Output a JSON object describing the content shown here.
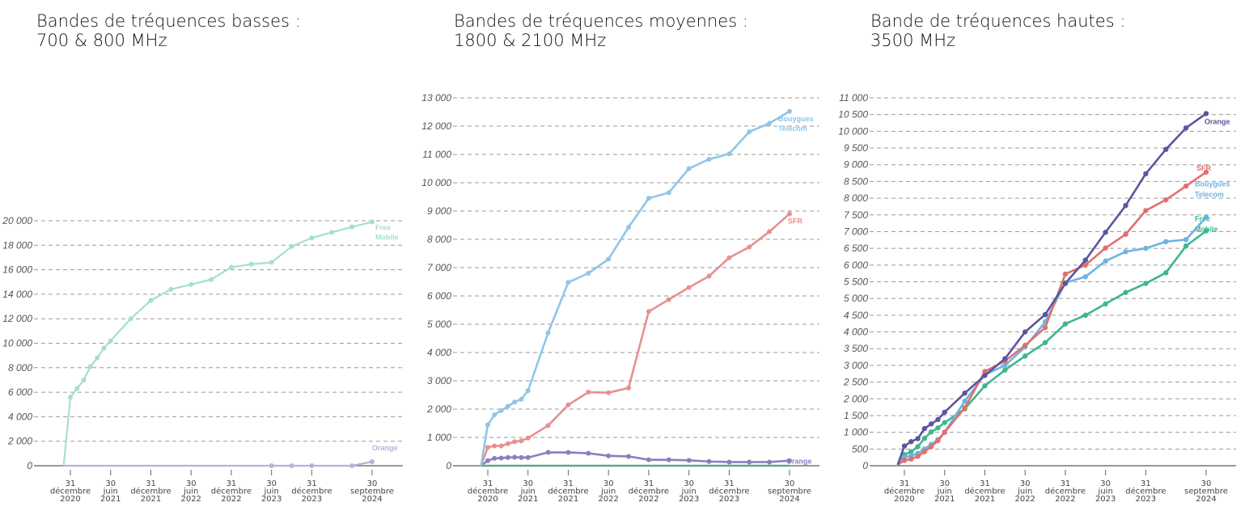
{
  "chart_data": [
    {
      "type": "line",
      "title": [
        "Bandes de tréquences basses :",
        "700 & 800 MHz"
      ],
      "x_unit": "months since 31 décembre 2020",
      "x": [
        -1,
        0,
        1,
        2,
        3,
        4,
        5,
        6,
        9,
        12,
        15,
        18,
        21,
        24,
        27,
        30,
        33,
        36,
        39,
        42,
        45
      ],
      "x_ticks": [
        {
          "at": 0,
          "label": [
            "31",
            "décembre",
            "2020"
          ]
        },
        {
          "at": 6,
          "label": [
            "30",
            "juin",
            "2021"
          ]
        },
        {
          "at": 12,
          "label": [
            "31",
            "décembre",
            "2021"
          ]
        },
        {
          "at": 18,
          "label": [
            "30",
            "juin",
            "2022"
          ]
        },
        {
          "at": 24,
          "label": [
            "31",
            "décembre",
            "2022"
          ]
        },
        {
          "at": 30,
          "label": [
            "30",
            "juin",
            "2023"
          ]
        },
        {
          "at": 36,
          "label": [
            "31",
            "décembre",
            "2023"
          ]
        },
        {
          "at": 45,
          "label": [
            "30",
            "septembre",
            "2024"
          ]
        }
      ],
      "ylim": [
        0,
        20000
      ],
      "y_ticks": [
        {
          "v": 0,
          "label": "0"
        },
        {
          "v": 2000,
          "label": "2 000"
        },
        {
          "v": 4000,
          "label": "4 000"
        },
        {
          "v": 6000,
          "label": "6 000"
        },
        {
          "v": 8000,
          "label": "8 000"
        },
        {
          "v": 10000,
          "label": "10 000"
        },
        {
          "v": 12000,
          "label": "12 000"
        },
        {
          "v": 14000,
          "label": "14 000"
        },
        {
          "v": 16000,
          "label": "16 000"
        },
        {
          "v": 18000,
          "label": "18 000"
        },
        {
          "v": 20000,
          "label": "20 000"
        }
      ],
      "grid": true,
      "series": [
        {
          "name": "Orange",
          "label": [
            "Orange"
          ],
          "color": "#b9b1da",
          "line_only_x": [
            -1,
            0,
            1,
            2,
            3,
            4,
            5,
            6,
            9,
            12,
            15,
            18,
            21,
            24,
            27
          ],
          "values": [
            0,
            0,
            0,
            0,
            0,
            0,
            0,
            0,
            0,
            0,
            0,
            0,
            0,
            0,
            0,
            0,
            0,
            0,
            0,
            0,
            330
          ],
          "marker_x": [
            30,
            33,
            36,
            42,
            45
          ]
        },
        {
          "name": "Free Mobile",
          "label": [
            "Free",
            "Mobile"
          ],
          "color": "#a6dfca",
          "values": [
            0,
            5600,
            6300,
            7000,
            8100,
            8800,
            9600,
            10200,
            12000,
            13500,
            14400,
            14800,
            15200,
            16200,
            16450,
            16600,
            17900,
            18600,
            19050,
            19500,
            19900
          ]
        }
      ]
    },
    {
      "type": "line",
      "title": [
        "Bandes de tréquences moyennes :",
        "1800 & 2100 MHz"
      ],
      "x_unit": "months since 31 décembre 2020",
      "x": [
        -1,
        0,
        1,
        2,
        3,
        4,
        5,
        6,
        9,
        12,
        15,
        18,
        21,
        24,
        27,
        30,
        33,
        36,
        39,
        42,
        45
      ],
      "x_ticks": [
        {
          "at": 0,
          "label": [
            "31",
            "décembre",
            "2020"
          ]
        },
        {
          "at": 6,
          "label": [
            "30",
            "juin",
            "2021"
          ]
        },
        {
          "at": 12,
          "label": [
            "31",
            "décembre",
            "2021"
          ]
        },
        {
          "at": 18,
          "label": [
            "30",
            "juin",
            "2022"
          ]
        },
        {
          "at": 24,
          "label": [
            "31",
            "décembre",
            "2022"
          ]
        },
        {
          "at": 30,
          "label": [
            "30",
            "juin",
            "2023"
          ]
        },
        {
          "at": 36,
          "label": [
            "31",
            "décembre",
            "2023"
          ]
        },
        {
          "at": 45,
          "label": [
            "30",
            "septembre",
            "2024"
          ]
        }
      ],
      "ylim": [
        0,
        13000
      ],
      "y_ticks": [
        {
          "v": 0,
          "label": "0"
        },
        {
          "v": 1000,
          "label": "1 000"
        },
        {
          "v": 2000,
          "label": "2 000"
        },
        {
          "v": 3000,
          "label": "3 000"
        },
        {
          "v": 4000,
          "label": "4 000"
        },
        {
          "v": 5000,
          "label": "5 000"
        },
        {
          "v": 6000,
          "label": "6 000"
        },
        {
          "v": 7000,
          "label": "7 000"
        },
        {
          "v": 8000,
          "label": "8 000"
        },
        {
          "v": 9000,
          "label": "9 000"
        },
        {
          "v": 10000,
          "label": "10 000"
        },
        {
          "v": 11000,
          "label": "11 000"
        },
        {
          "v": 12000,
          "label": "12 000"
        },
        {
          "v": 13000,
          "label": "13 000"
        }
      ],
      "grid": true,
      "series": [
        {
          "name": "Free Mobile",
          "label": [],
          "color": "#5fa886",
          "values": [
            0,
            0,
            0,
            0,
            0,
            0,
            0,
            0,
            0,
            0,
            0,
            0,
            0,
            0,
            0,
            0,
            0,
            0,
            0,
            0,
            0
          ],
          "no_markers": true
        },
        {
          "name": "Orange",
          "label": [
            "Orange"
          ],
          "color": "#8780c0",
          "values": [
            0,
            180,
            260,
            270,
            290,
            300,
            290,
            290,
            470,
            470,
            440,
            350,
            330,
            210,
            210,
            190,
            150,
            130,
            130,
            130,
            180
          ]
        },
        {
          "name": "SFR",
          "label": [
            "SFR"
          ],
          "color": "#e79090",
          "values": [
            0,
            650,
            700,
            700,
            780,
            850,
            880,
            980,
            1420,
            2150,
            2600,
            2580,
            2750,
            5450,
            5870,
            6300,
            6700,
            7350,
            7730,
            8270,
            8900
          ]
        },
        {
          "name": "Bouygues Telecom",
          "label": [
            "Bouygues",
            "Telecom"
          ],
          "color": "#8fc6e7",
          "values": [
            0,
            1450,
            1800,
            1950,
            2100,
            2250,
            2350,
            2650,
            4700,
            6480,
            6800,
            7300,
            8430,
            9450,
            9650,
            10500,
            10830,
            11020,
            11800,
            12100,
            12520
          ]
        }
      ]
    },
    {
      "type": "line",
      "title": [
        "Bande de tréquences hautes :",
        "3500 MHz"
      ],
      "x_unit": "months since 31 décembre 2020",
      "x": [
        -1,
        0,
        1,
        2,
        3,
        4,
        5,
        6,
        9,
        12,
        15,
        18,
        21,
        24,
        27,
        30,
        33,
        36,
        39,
        42,
        45
      ],
      "x_ticks": [
        {
          "at": 0,
          "label": [
            "31",
            "décembre",
            "2020"
          ]
        },
        {
          "at": 6,
          "label": [
            "30",
            "juin",
            "2021"
          ]
        },
        {
          "at": 12,
          "label": [
            "31",
            "décembre",
            "2021"
          ]
        },
        {
          "at": 18,
          "label": [
            "30",
            "juin",
            "2022"
          ]
        },
        {
          "at": 24,
          "label": [
            "31",
            "décembre",
            "2022"
          ]
        },
        {
          "at": 30,
          "label": [
            "30",
            "juin",
            "2023"
          ]
        },
        {
          "at": 36,
          "label": [
            "31",
            "décembre",
            "2023"
          ]
        },
        {
          "at": 45,
          "label": [
            "30",
            "septembre",
            "2024"
          ]
        }
      ],
      "ylim": [
        0,
        11000
      ],
      "y_ticks": [
        {
          "v": 0,
          "label": "0"
        },
        {
          "v": 500,
          "label": "500"
        },
        {
          "v": 1000,
          "label": "1 000"
        },
        {
          "v": 1500,
          "label": "1 500"
        },
        {
          "v": 2000,
          "label": "2 000"
        },
        {
          "v": 2500,
          "label": "2 500"
        },
        {
          "v": 3000,
          "label": "3 000"
        },
        {
          "v": 3500,
          "label": "3 500"
        },
        {
          "v": 4000,
          "label": "4 000"
        },
        {
          "v": 4500,
          "label": "4 500"
        },
        {
          "v": 5000,
          "label": "5 000"
        },
        {
          "v": 5500,
          "label": "5 500"
        },
        {
          "v": 6000,
          "label": "6 000"
        },
        {
          "v": 6500,
          "label": "6 500"
        },
        {
          "v": 7000,
          "label": "7 000"
        },
        {
          "v": 7500,
          "label": "7 500"
        },
        {
          "v": 8000,
          "label": "8 000"
        },
        {
          "v": 8500,
          "label": "8 500"
        },
        {
          "v": 9000,
          "label": "9 000"
        },
        {
          "v": 9500,
          "label": "9 500"
        },
        {
          "v": 10000,
          "label": "10 000"
        },
        {
          "v": 10500,
          "label": "10 500"
        },
        {
          "v": 11000,
          "label": "11 000"
        }
      ],
      "grid": true,
      "series": [
        {
          "name": "Free Mobile",
          "label": [
            "Free",
            "Mobile"
          ],
          "color": "#3db78c",
          "values": [
            30,
            330,
            420,
            570,
            820,
            1010,
            1130,
            1290,
            1700,
            2390,
            2860,
            3280,
            3680,
            4240,
            4500,
            4840,
            5180,
            5450,
            5770,
            6570,
            7020
          ]
        },
        {
          "name": "Bouygues Telecom",
          "label": [
            "Bouygues",
            "Telecom"
          ],
          "color": "#6cb4e0",
          "values": [
            30,
            250,
            300,
            370,
            500,
            640,
            780,
            1000,
            1930,
            2720,
            3000,
            3550,
            4300,
            5470,
            5650,
            6120,
            6400,
            6500,
            6700,
            6760,
            7430
          ]
        },
        {
          "name": "SFR",
          "label": [
            "SFR"
          ],
          "color": "#e06f6f",
          "values": [
            30,
            160,
            200,
            280,
            420,
            570,
            750,
            1000,
            1730,
            2820,
            3130,
            3600,
            4130,
            5730,
            6000,
            6510,
            6920,
            7630,
            7950,
            8360,
            8780
          ]
        },
        {
          "name": "Orange",
          "label": [
            "Orange"
          ],
          "color": "#5c559f",
          "values": [
            30,
            590,
            720,
            810,
            1110,
            1250,
            1380,
            1600,
            2170,
            2700,
            3200,
            4000,
            4520,
            5450,
            6150,
            6980,
            7780,
            8730,
            9460,
            10100,
            10530
          ]
        }
      ]
    }
  ]
}
